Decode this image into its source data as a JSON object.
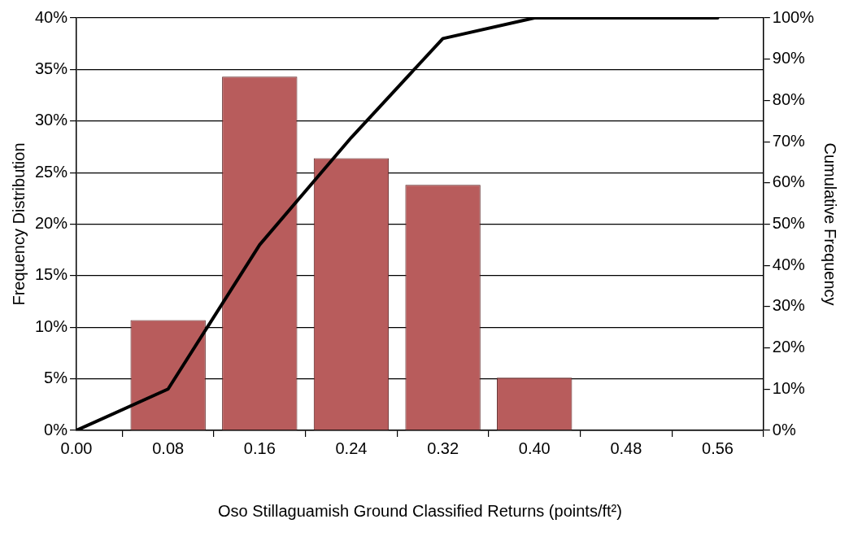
{
  "chart_data": {
    "type": "bar",
    "xlabel": "Oso Stillaguamish Ground Classified Returns (points/ft²)",
    "ylabel": "Frequency Distribution",
    "y2label": "Cumulative Frequency",
    "x": [
      0,
      0.08,
      0.16,
      0.24,
      0.32,
      0.4,
      0.48,
      0.56
    ],
    "series": [
      {
        "color": "#b85c5c",
        "values": [
          0,
          10.7,
          34.3,
          26.4,
          23.8,
          5.1,
          0,
          0
        ]
      },
      {
        "type": "line",
        "axis": "y2",
        "color": "#000000",
        "values": [
          0,
          10,
          45,
          71,
          95,
          100,
          100,
          100
        ]
      }
    ],
    "xlim": [
      0,
      0.6
    ],
    "xticks": [
      {
        "value": 0,
        "label": "0.00"
      },
      {
        "value": 0.08,
        "label": "0.08"
      },
      {
        "value": 0.16,
        "label": "0.16"
      },
      {
        "value": 0.24,
        "label": "0.24"
      },
      {
        "value": 0.32,
        "label": "0.32"
      },
      {
        "value": 0.4,
        "label": "0.40"
      },
      {
        "value": 0.48,
        "label": "0.48"
      },
      {
        "value": 0.56,
        "label": "0.56"
      }
    ],
    "ylim": [
      0,
      40
    ],
    "yticks": [
      {
        "value": 0,
        "label": "0%"
      },
      {
        "value": 5,
        "label": "5%"
      },
      {
        "value": 10,
        "label": "10%"
      },
      {
        "value": 15,
        "label": "15%"
      },
      {
        "value": 20,
        "label": "20%"
      },
      {
        "value": 25,
        "label": "25%"
      },
      {
        "value": 30,
        "label": "30%"
      },
      {
        "value": 35,
        "label": "35%"
      },
      {
        "value": 40,
        "label": "40%"
      }
    ],
    "y2lim": [
      0,
      100
    ],
    "y2ticks": [
      {
        "value": 0,
        "label": "0%"
      },
      {
        "value": 10,
        "label": "10%"
      },
      {
        "value": 20,
        "label": "20%"
      },
      {
        "value": 30,
        "label": "30%"
      },
      {
        "value": 40,
        "label": "40%"
      },
      {
        "value": 50,
        "label": "50%"
      },
      {
        "value": 60,
        "label": "60%"
      },
      {
        "value": 70,
        "label": "70%"
      },
      {
        "value": 80,
        "label": "80%"
      },
      {
        "value": 90,
        "label": "90%"
      },
      {
        "value": 100,
        "label": "100%"
      }
    ],
    "grid": "y",
    "legend": false,
    "marker": "none",
    "line_style": "solid"
  }
}
